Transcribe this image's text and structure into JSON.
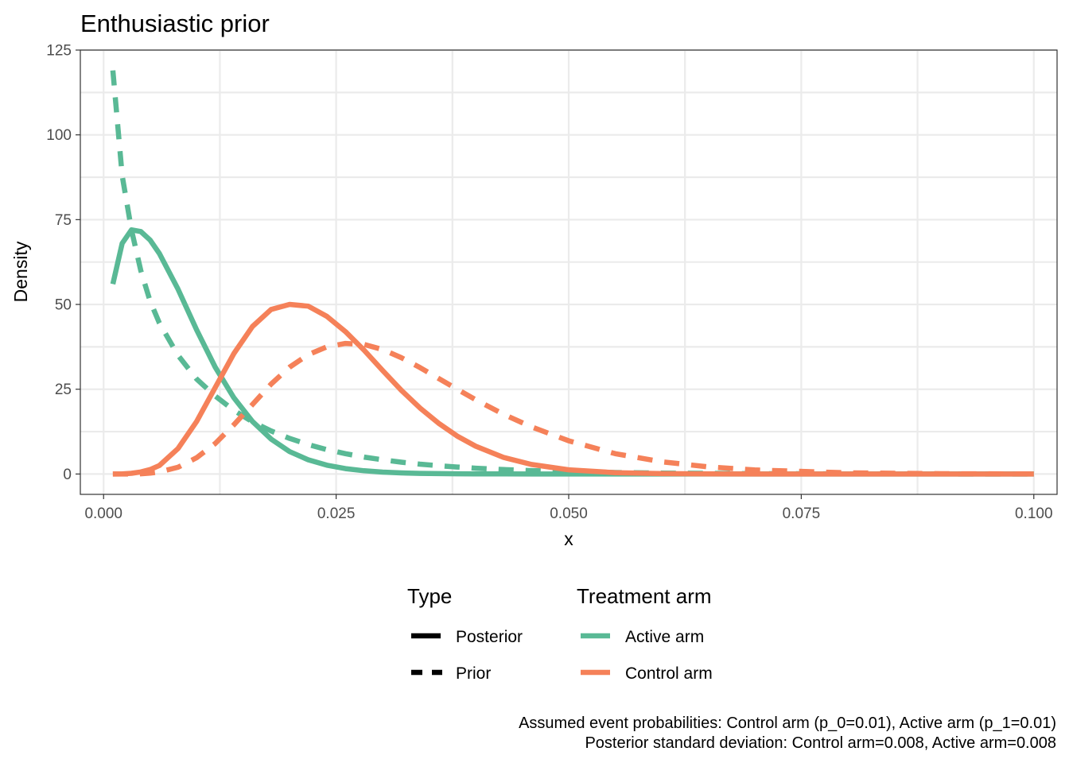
{
  "chart_data": {
    "type": "line",
    "title": "Enthusiastic prior",
    "xlabel": "x",
    "ylabel": "Density",
    "xlim": [
      -0.0025,
      0.1025
    ],
    "ylim": [
      -6,
      125
    ],
    "x_ticks": [
      0.0,
      0.025,
      0.05,
      0.075,
      0.1
    ],
    "x_tick_labels": [
      "0.000",
      "0.025",
      "0.050",
      "0.075",
      "0.100"
    ],
    "y_ticks": [
      0,
      25,
      50,
      75,
      100,
      125
    ],
    "y_tick_labels": [
      "0",
      "25",
      "50",
      "75",
      "100",
      "125"
    ],
    "grid": true,
    "x": [
      0.001,
      0.002,
      0.003,
      0.004,
      0.005,
      0.006,
      0.008,
      0.01,
      0.012,
      0.014,
      0.016,
      0.018,
      0.02,
      0.022,
      0.024,
      0.026,
      0.028,
      0.03,
      0.032,
      0.034,
      0.036,
      0.038,
      0.04,
      0.043,
      0.046,
      0.05,
      0.055,
      0.06,
      0.065,
      0.07,
      0.08,
      0.09,
      0.1
    ],
    "series": [
      {
        "name": "Active arm - Posterior",
        "arm": "Active arm",
        "type": "Posterior",
        "values": [
          56,
          68,
          72,
          71.5,
          69,
          65,
          54.5,
          42.5,
          31.5,
          22.5,
          15.5,
          10.3,
          6.6,
          4.2,
          2.6,
          1.6,
          0.95,
          0.56,
          0.33,
          0.19,
          0.11,
          0.06,
          0.035,
          0.015,
          0.006,
          0.002,
          0.0005,
          0.0001,
          0,
          0,
          0,
          0,
          0
        ]
      },
      {
        "name": "Active arm - Prior",
        "arm": "Active arm",
        "type": "Prior",
        "values": [
          119,
          88,
          72,
          60,
          51,
          44.5,
          35,
          28,
          23,
          18.8,
          15.4,
          12.7,
          10.5,
          8.7,
          7.2,
          6.0,
          5.0,
          4.2,
          3.5,
          2.9,
          2.45,
          2.05,
          1.7,
          1.3,
          1.0,
          0.7,
          0.45,
          0.28,
          0.18,
          0.12,
          0.05,
          0.02,
          0.01
        ]
      },
      {
        "name": "Control arm - Posterior",
        "arm": "Control arm",
        "type": "Posterior",
        "values": [
          0,
          0.05,
          0.2,
          0.6,
          1.3,
          2.5,
          7.5,
          15.5,
          25.5,
          35.5,
          43.5,
          48.5,
          50,
          49.5,
          46.5,
          42,
          36.5,
          30.5,
          24.7,
          19.5,
          15,
          11.2,
          8.2,
          4.9,
          2.8,
          1.25,
          0.4,
          0.12,
          0.03,
          0.01,
          0,
          0,
          0
        ]
      },
      {
        "name": "Control arm - Prior",
        "arm": "Control arm",
        "type": "Prior",
        "values": [
          0,
          0,
          0.02,
          0.08,
          0.25,
          0.6,
          2,
          4.8,
          9,
          14.5,
          20.5,
          26.5,
          31.5,
          35.2,
          37.5,
          38.5,
          38.2,
          36.7,
          34.3,
          31.4,
          28.2,
          25,
          21.9,
          17.6,
          13.9,
          9.8,
          6.0,
          3.6,
          2.1,
          1.2,
          0.35,
          0.1,
          0.03
        ]
      }
    ],
    "colors": {
      "Active arm": "#59B995",
      "Control arm": "#F58159"
    },
    "legend": {
      "position": "bottom",
      "type": {
        "title": "Type",
        "entries": [
          "Posterior",
          "Prior"
        ]
      },
      "arm": {
        "title": "Treatment arm",
        "entries": [
          "Active arm",
          "Control arm"
        ]
      }
    }
  },
  "caption": {
    "line1": "Assumed event probabilities: Control arm (p_0=0.01), Active arm (p_1=0.01)",
    "line2": "Posterior standard deviation: Control arm=0.008, Active arm=0.008"
  }
}
